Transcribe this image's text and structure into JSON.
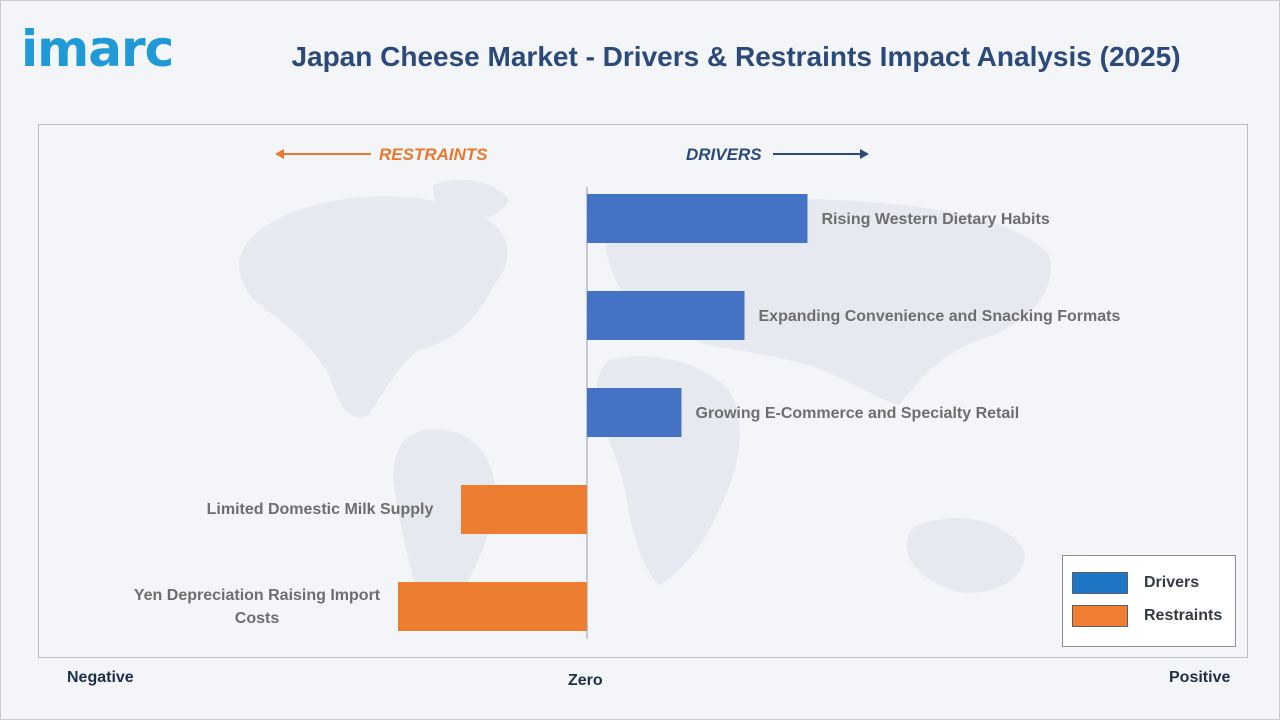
{
  "brand": {
    "logo_text": "imarc",
    "color": "#1f9ad6"
  },
  "header": {
    "title": "Japan Cheese Market - Drivers & Restraints Impact Analysis (2025)"
  },
  "direction_labels": {
    "restraints": "RESTRAINTS",
    "drivers": "DRIVERS"
  },
  "axis_words": {
    "negative": "Negative",
    "zero": "Zero",
    "positive": "Positive"
  },
  "legend": [
    {
      "label": "Drivers",
      "color": "#1f76c6"
    },
    {
      "label": "Restraints",
      "color": "#f07e33"
    }
  ],
  "colors": {
    "drivers_bar": "#4472c4",
    "restraints_bar": "#ed7d31",
    "restraints_text": "#e9782f",
    "drivers_text": "#2b4a7a"
  },
  "chart_data": {
    "type": "bar",
    "orientation": "horizontal",
    "categories": [
      "Rising Western Dietary Habits",
      "Expanding Convenience and Snacking Formats",
      "Growing E-Commerce and Specialty Retail",
      "Limited Domestic Milk Supply",
      "Yen Depreciation Raising Import Costs"
    ],
    "series": [
      {
        "name": "Drivers",
        "values": [
          3.5,
          2.5,
          1.5,
          null,
          null
        ]
      },
      {
        "name": "Restraints",
        "values": [
          null,
          null,
          null,
          -2.0,
          -3.0
        ]
      }
    ],
    "xlim": [
      -8.6,
      8.6
    ],
    "legend_position": "bottom-right"
  }
}
